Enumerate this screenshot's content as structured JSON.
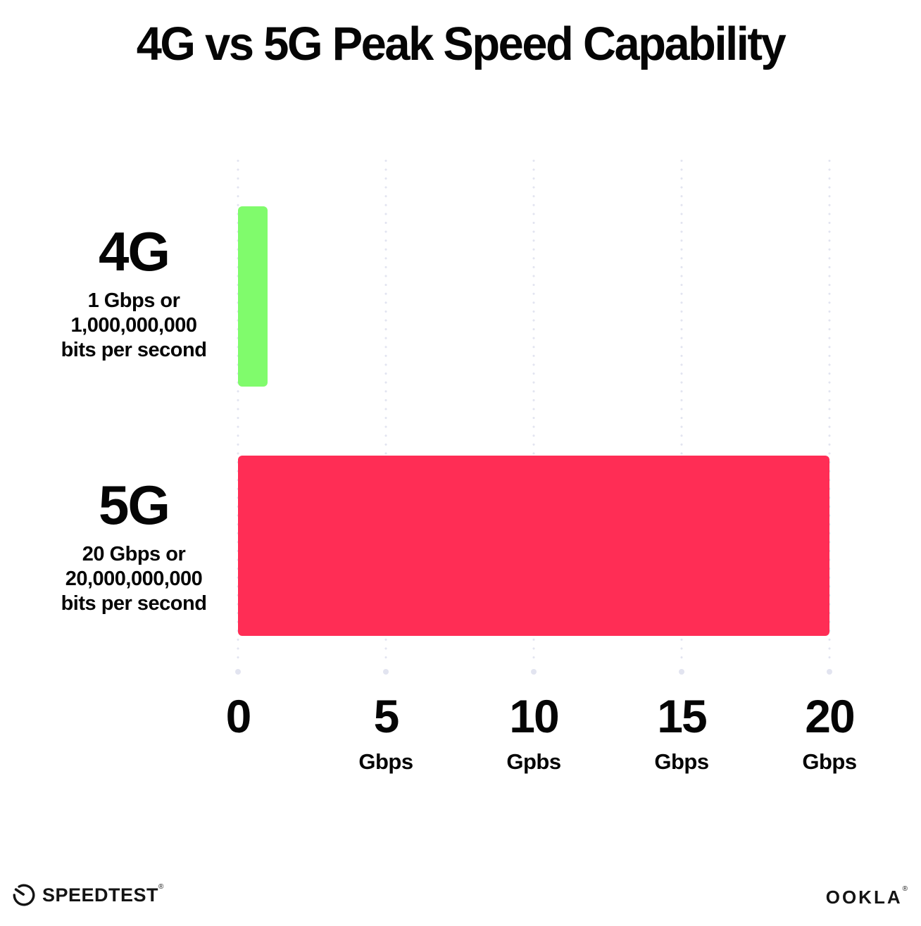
{
  "title": "4G vs 5G Peak Speed Capability",
  "chart_data": {
    "type": "bar",
    "orientation": "horizontal",
    "title": "4G vs 5G Peak Speed Capability",
    "categories": [
      "4G",
      "5G"
    ],
    "values": [
      1,
      20
    ],
    "value_unit": "Gbps",
    "sublabels": [
      [
        "1 Gbps or",
        "1,000,000,000",
        "bits per second"
      ],
      [
        "20 Gbps or",
        "20,000,000,000",
        "bits per second"
      ]
    ],
    "bar_colors": [
      "#80FB6C",
      "#FF2D55"
    ],
    "xlim": [
      0,
      20
    ],
    "x_ticks": [
      {
        "num": "0",
        "unit": ""
      },
      {
        "num": "5",
        "unit": "Gbps"
      },
      {
        "num": "10",
        "unit": "Gpbs"
      },
      {
        "num": "15",
        "unit": "Gbps"
      },
      {
        "num": "20",
        "unit": "Gbps"
      }
    ],
    "grid": "vertical-dotted",
    "grid_color": "#E2E4F0",
    "legend": "none",
    "background": "#FFFFFF",
    "text_color": "#050505"
  },
  "footer": {
    "speedtest_label": "SPEEDTEST",
    "speedtest_reg": "®",
    "speedtest_icon": "gauge-icon",
    "ookla_label": "OOKLA",
    "ookla_reg": "®"
  }
}
